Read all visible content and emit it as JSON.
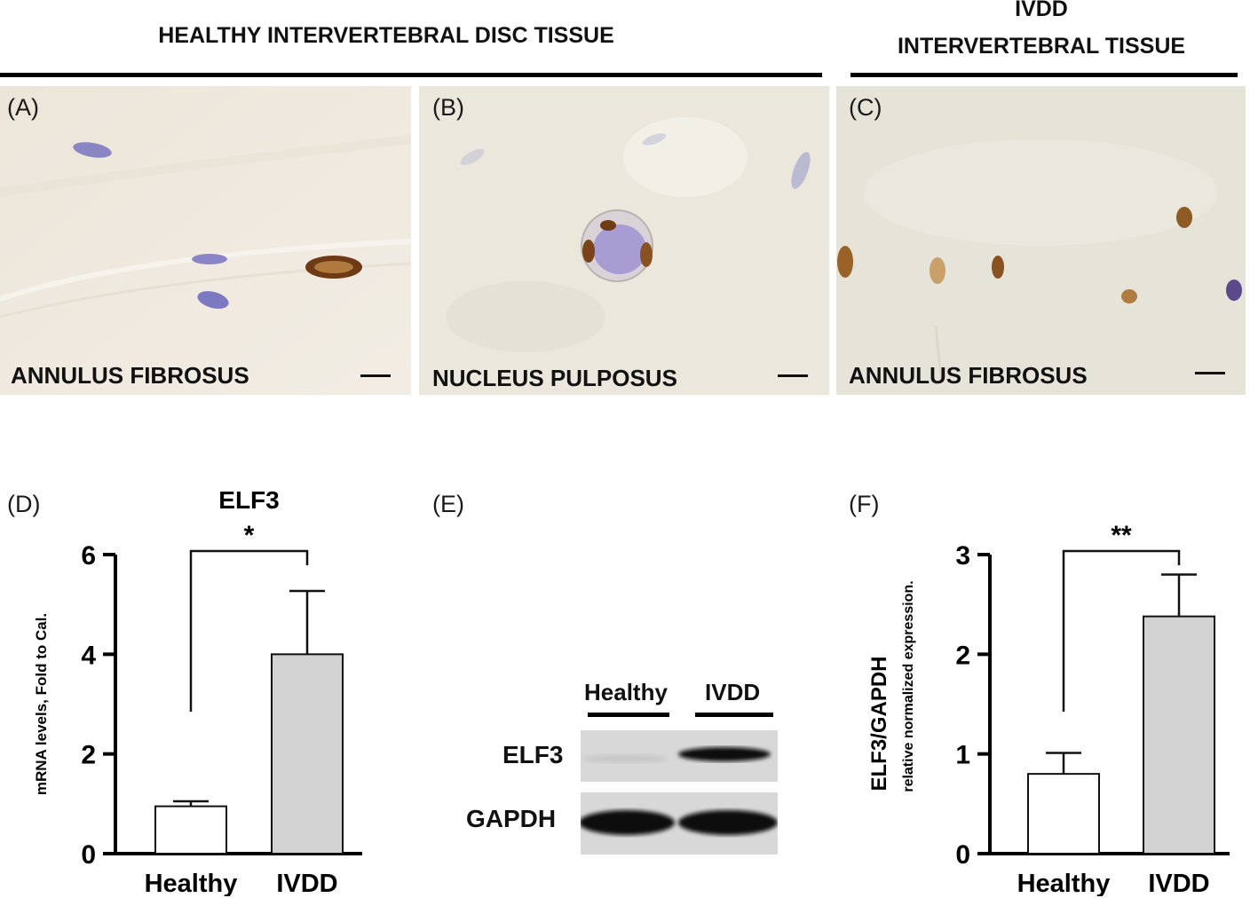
{
  "headers": {
    "healthy": "HEALTHY INTERVERTEBRAL DISC TISSUE",
    "ivdd_line1": "IVDD",
    "ivdd_line2": "INTERVERTEBRAL TISSUE"
  },
  "panels": {
    "a": {
      "label": "(A)",
      "tissue": "ANNULUS FIBROSUS"
    },
    "b": {
      "label": "(B)",
      "tissue": "NUCLEUS PULPOSUS"
    },
    "c": {
      "label": "(C)",
      "tissue": "ANNULUS FIBROSUS"
    },
    "d": {
      "label": "(D)"
    },
    "e": {
      "label": "(E)"
    },
    "f": {
      "label": "(F)"
    }
  },
  "colors": {
    "tissue_bg_a": "#efe9df",
    "tissue_bg_b": "#eeeadf",
    "tissue_bg_c": "#e9e6dc",
    "bar_healthy": "#ffffff",
    "bar_ivdd": "#d3d3d3",
    "stain_brown": "#7a4418",
    "stain_blue": "#7b76c0"
  },
  "icons": [
    "scale-bar"
  ],
  "blot": {
    "lanes": [
      "Healthy",
      "IVDD"
    ],
    "rows": [
      "ELF3",
      "GAPDH"
    ]
  },
  "chart_data": [
    {
      "type": "bar",
      "panel": "D",
      "title": "ELF3",
      "categories": [
        "Healthy",
        "IVDD"
      ],
      "values": [
        0.95,
        4.0
      ],
      "error_upper": [
        1.05,
        5.27
      ],
      "xlabel": "",
      "ylabel": "mRNA levels, Fold to Cal.",
      "ylim": [
        0,
        6
      ],
      "yticks": [
        0,
        2,
        4,
        6
      ],
      "significance": "*",
      "grid": false
    },
    {
      "type": "bar",
      "panel": "F",
      "title": "",
      "categories": [
        "Healthy",
        "IVDD"
      ],
      "values": [
        0.8,
        2.38
      ],
      "error_upper": [
        1.01,
        2.8
      ],
      "xlabel": "",
      "ylabel": "ELF3/GAPDH",
      "ylabel2": "relative normalized expression.",
      "ylim": [
        0,
        3
      ],
      "yticks": [
        0,
        1,
        2,
        3
      ],
      "significance": "**",
      "grid": false
    }
  ]
}
